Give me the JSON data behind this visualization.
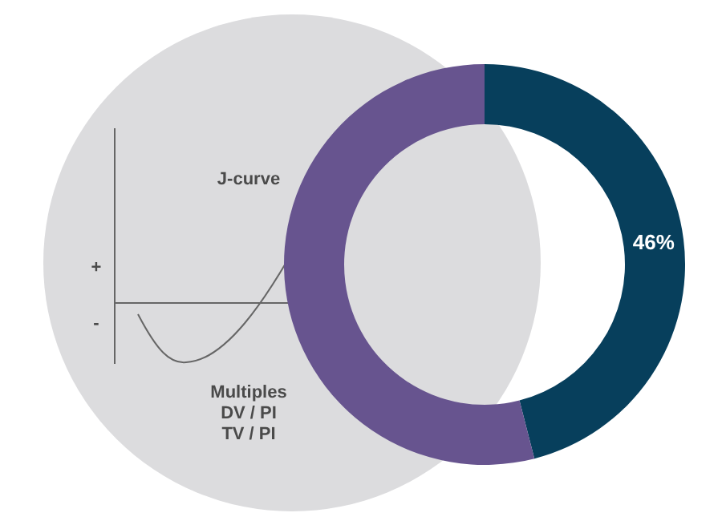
{
  "chart_data": {
    "type": "donut",
    "categories": [
      null,
      null
    ],
    "values": [
      46,
      54
    ],
    "colors": [
      "#073f5c",
      "#67548f"
    ],
    "value_labels": [
      "46%",
      null
    ],
    "annotations": [
      "J-curve",
      "+",
      "-",
      "Multiples",
      "DV / PI",
      "TV / PI"
    ]
  }
}
